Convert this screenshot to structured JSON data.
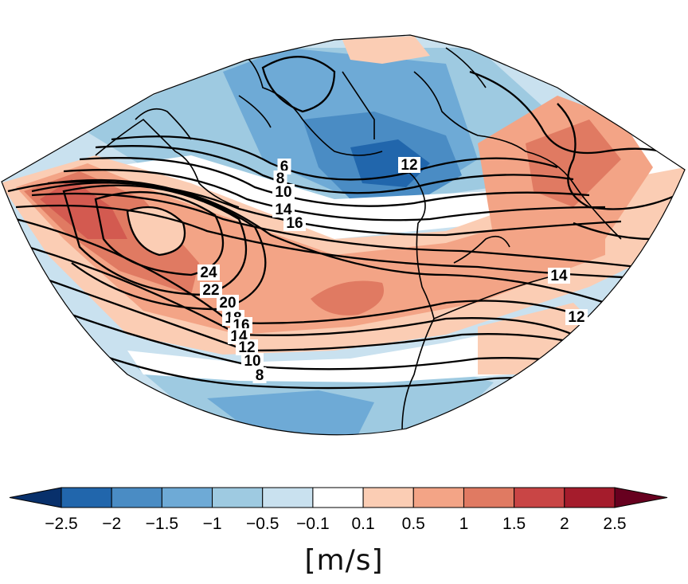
{
  "map": {
    "projection": "polar conic sector (North Atlantic / Europe)",
    "shading_field": "wind anomaly",
    "contour_field": "wind speed",
    "contour_labels": [
      "6",
      "8",
      "10",
      "14",
      "16",
      "24",
      "22",
      "20",
      "18",
      "16",
      "14",
      "12",
      "10",
      "8",
      "12",
      "14",
      "12"
    ]
  },
  "colorbar": {
    "levels": [
      "−2.5",
      "−2",
      "−1.5",
      "−1",
      "−0.5",
      "−0.1",
      "0.1",
      "0.5",
      "1",
      "1.5",
      "2",
      "2.5"
    ],
    "colors": [
      "#08306b",
      "#2166ac",
      "#4a8cc4",
      "#6eaad6",
      "#9ecae1",
      "#c9e1ef",
      "#ffffff",
      "#fbcdb4",
      "#f3a486",
      "#e07a62",
      "#c94545",
      "#a51c2c",
      "#67001f"
    ],
    "units": "[m/s]"
  }
}
